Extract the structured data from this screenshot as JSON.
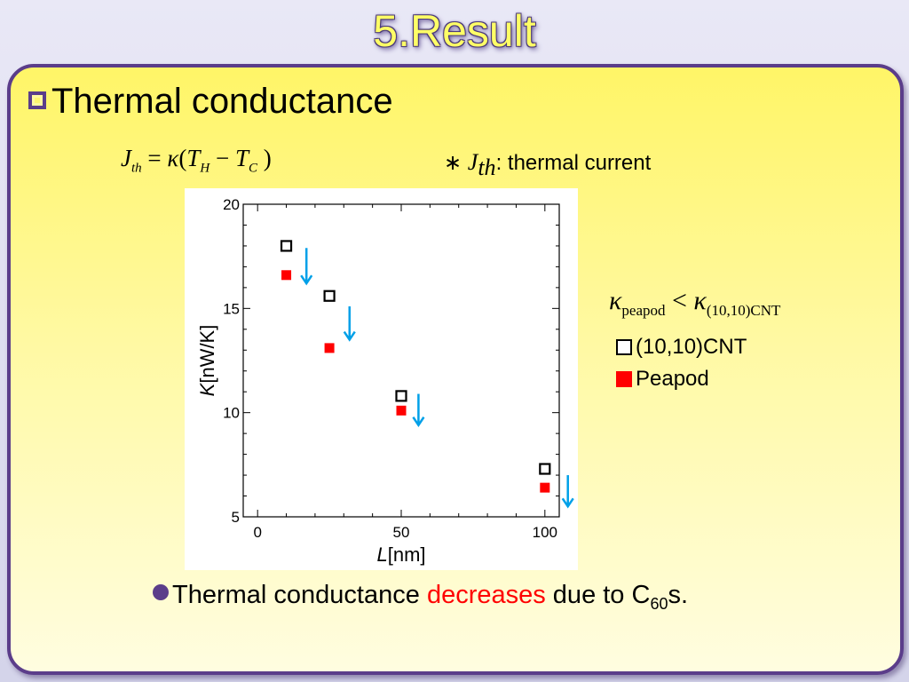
{
  "slide": {
    "title": "5.Result",
    "heading": "Thermal conductance",
    "formula": {
      "J": "J",
      "J_sub": "th",
      "eq": " = ",
      "kappa": "κ",
      "lp": "(",
      "T1": "T",
      "T1_sub": "H",
      "minus": " − ",
      "T2": "T",
      "T2_sub": "C",
      "rp": " )"
    },
    "note": {
      "star": "∗ ",
      "J": "J",
      "J_sub": "th",
      "text": ": thermal current"
    },
    "kappa_relation": {
      "k1": "κ",
      "k1_sub": "peapod",
      "lt": " < ",
      "k2": "κ",
      "k2_sub": "(10,10)CNT"
    },
    "legend": [
      {
        "label": "(10,10)CNT",
        "marker": "open-square-icon"
      },
      {
        "label": "Peapod",
        "marker": "filled-square-icon"
      }
    ],
    "conclusion": {
      "pre": "Thermal conductance ",
      "highlight": "decreases",
      "post": " due to C",
      "sub": "60",
      "tail": "s."
    }
  },
  "colors": {
    "accent": "#5b3d8a",
    "title": "#ffff66",
    "peapod": "#ff0000",
    "arrow": "#00a0e8",
    "highlight": "#ff0000"
  },
  "chart_data": {
    "type": "scatter",
    "xlabel_italic": "L",
    "xlabel_unit": "[nm]",
    "ylabel_italic": "K",
    "ylabel_unit": "[nW/K]",
    "xlim": [
      -5,
      105
    ],
    "ylim": [
      5,
      20
    ],
    "x_ticks": [
      0,
      50,
      100
    ],
    "y_ticks": [
      5,
      10,
      15,
      20
    ],
    "series": [
      {
        "name": "(10,10)CNT",
        "marker": "open-square",
        "points": [
          [
            10,
            18.0
          ],
          [
            25,
            15.6
          ],
          [
            50,
            10.8
          ],
          [
            100,
            7.3
          ]
        ]
      },
      {
        "name": "Peapod",
        "marker": "filled-square",
        "points": [
          [
            10,
            16.6
          ],
          [
            25,
            13.1
          ],
          [
            50,
            10.1
          ],
          [
            100,
            6.4
          ]
        ]
      }
    ],
    "arrows": [
      {
        "x": 17,
        "y_from": 17.9,
        "y_to": 16.2
      },
      {
        "x": 32,
        "y_from": 15.1,
        "y_to": 13.5
      },
      {
        "x": 56,
        "y_from": 10.9,
        "y_to": 9.4
      },
      {
        "x": 108,
        "y_from": 7.0,
        "y_to": 5.5
      }
    ]
  }
}
